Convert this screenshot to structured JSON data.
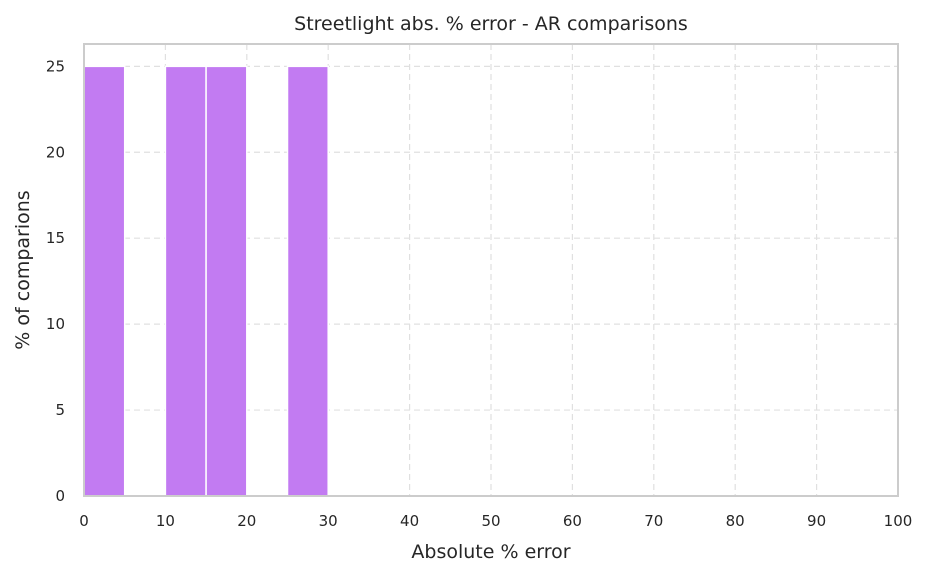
{
  "chart_data": {
    "type": "bar",
    "subtype": "histogram",
    "title": "Streetlight abs. % error - AR comparisons",
    "xlabel": "Absolute % error",
    "ylabel": "% of comparions",
    "bar_color": "#c27bf2",
    "grid": true,
    "grid_style": "dashed",
    "xlim": [
      0,
      100
    ],
    "ylim": [
      0,
      26.3
    ],
    "x_ticks": [
      0,
      10,
      20,
      30,
      40,
      50,
      60,
      70,
      80,
      90,
      100
    ],
    "y_ticks": [
      0,
      5,
      10,
      15,
      20,
      25
    ],
    "bins": [
      {
        "start": 0,
        "end": 5,
        "value": 25
      },
      {
        "start": 10,
        "end": 15,
        "value": 25
      },
      {
        "start": 15,
        "end": 20,
        "value": 25
      },
      {
        "start": 25,
        "end": 30,
        "value": 25
      }
    ]
  }
}
